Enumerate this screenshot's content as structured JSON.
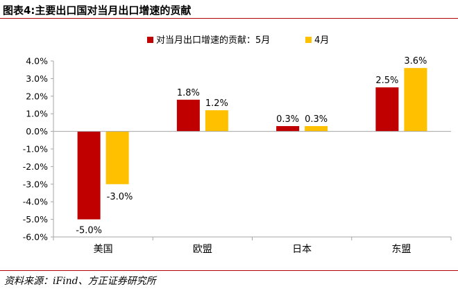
{
  "figure": {
    "title": "图表4:主要出口国对当月出口增速的贡献",
    "source": "资料来源：iFind、方正证券研究所"
  },
  "colors": {
    "series_may": "#c00000",
    "series_april": "#ffc000",
    "axis": "#a6a6a6",
    "rule": "#b00000"
  },
  "chart_data": {
    "type": "bar",
    "title": "",
    "xlabel": "",
    "ylabel": "",
    "categories": [
      "美国",
      "欧盟",
      "日本",
      "东盟"
    ],
    "series": [
      {
        "name": "对当月出口增速的贡献：5月",
        "values": [
          -5.0,
          1.8,
          0.3,
          2.5
        ],
        "labels": [
          "-5.0%",
          "1.8%",
          "0.3%",
          "2.5%"
        ]
      },
      {
        "name": "4月",
        "values": [
          -3.0,
          1.2,
          0.3,
          3.6
        ],
        "labels": [
          "-3.0%",
          "1.2%",
          "0.3%",
          "3.6%"
        ]
      }
    ],
    "ylim": [
      -6.0,
      4.0
    ],
    "yticks": [
      4.0,
      3.0,
      2.0,
      1.0,
      0.0,
      -1.0,
      -2.0,
      -3.0,
      -4.0,
      -5.0,
      -6.0
    ],
    "ytick_labels": [
      "4.0%",
      "3.0%",
      "2.0%",
      "1.0%",
      "0.0%",
      "-1.0%",
      "-2.0%",
      "-3.0%",
      "-4.0%",
      "-5.0%",
      "-6.0%"
    ],
    "grid": false,
    "legend_position": "top-center"
  }
}
